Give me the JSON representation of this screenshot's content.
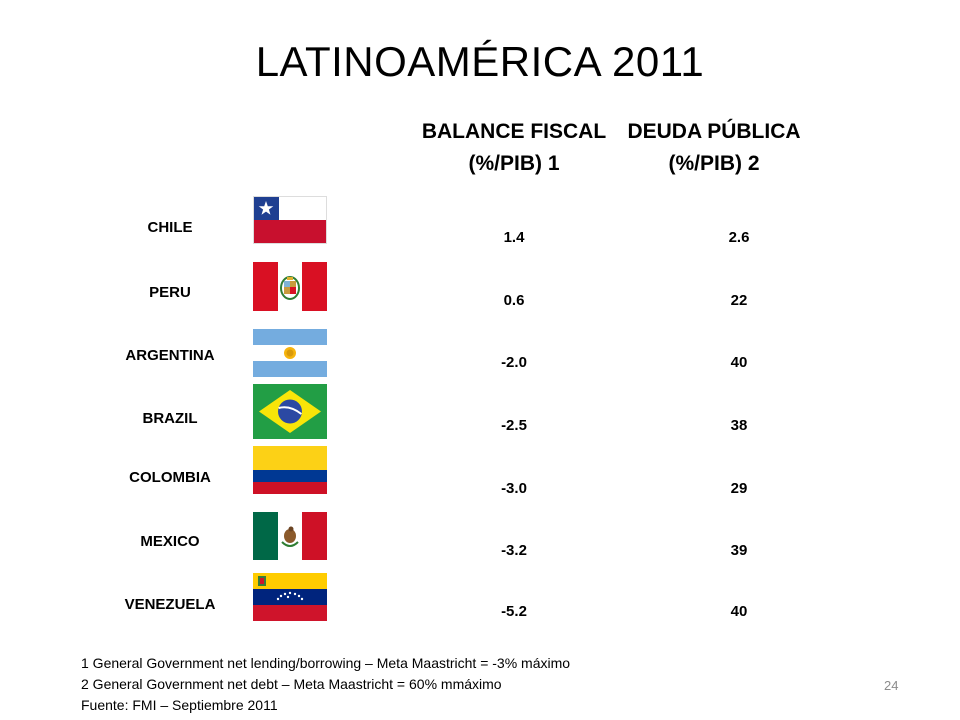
{
  "slide": {
    "title": "LATINOAMÉRICA 2011",
    "page_number": "24"
  },
  "columns": {
    "fiscal_balance": {
      "line1": "BALANCE FISCAL",
      "line2": "(%/PIB) 1"
    },
    "public_debt": {
      "line1": "DEUDA PÚBLICA",
      "line2": "(%/PIB) 2"
    }
  },
  "rows": [
    {
      "country": "CHILE",
      "flag": "chile-flag",
      "fiscal_balance": "1.4",
      "public_debt": "2.6"
    },
    {
      "country": "PERU",
      "flag": "peru-flag",
      "fiscal_balance": "0.6",
      "public_debt": "22"
    },
    {
      "country": "ARGENTINA",
      "flag": "argentina-flag",
      "fiscal_balance": "-2.0",
      "public_debt": "40"
    },
    {
      "country": "BRAZIL",
      "flag": "brazil-flag",
      "fiscal_balance": "-2.5",
      "public_debt": "38"
    },
    {
      "country": "COLOMBIA",
      "flag": "colombia-flag",
      "fiscal_balance": "-3.0",
      "public_debt": "29"
    },
    {
      "country": "MEXICO",
      "flag": "mexico-flag",
      "fiscal_balance": "-3.2",
      "public_debt": "39"
    },
    {
      "country": "VENEZUELA",
      "flag": "venezuela-flag",
      "fiscal_balance": "-5.2",
      "public_debt": "40"
    }
  ],
  "footnotes": {
    "note1": "1 General Government net lending/borrowing – Meta Maastricht = -3% máximo",
    "note2": "2 General Government net debt – Meta Maastricht = 60% mmáximo",
    "source": "Fuente: FMI – Septiembre 2011"
  },
  "colors": {
    "chile_blue": "#1f3f91",
    "chile_red": "#c8102e",
    "peru_red": "#d91023",
    "argentina_blue": "#74acdf",
    "sun": "#f6b40e",
    "brazil_green": "#229e45",
    "brazil_yellow": "#f8e509",
    "brazil_blue": "#2b49a3",
    "colombia_yellow": "#fcd116",
    "colombia_blue": "#003893",
    "colombia_red": "#ce1126",
    "mexico_green": "#006847",
    "mexico_red": "#ce1126",
    "venezuela_yellow": "#ffcc00",
    "venezuela_blue": "#00247d",
    "venezuela_red": "#cf142b"
  }
}
